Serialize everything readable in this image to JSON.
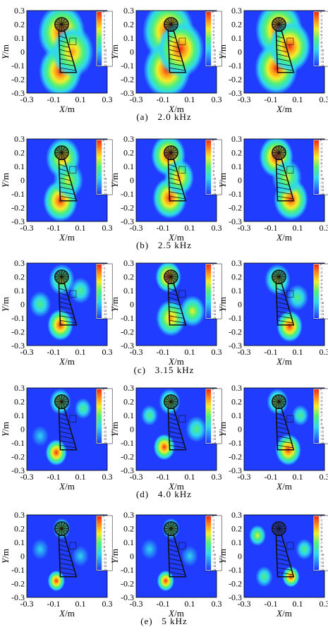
{
  "figure": {
    "x_label_var": "X",
    "x_label_unit": "/m",
    "y_label_var": "Y",
    "y_label_unit": "/m",
    "x_ticks": [
      "-0.3",
      "-0.1",
      "0.1",
      "0.3"
    ],
    "y_ticks": [
      "0.3",
      "0.2",
      "0.1",
      "0",
      "-0.1",
      "-0.2",
      "-0.3"
    ],
    "colorbar_ticks": [
      "0",
      "-1",
      "-2",
      "-3",
      "-4",
      "-5",
      "-6",
      "-7",
      "-8",
      "-9",
      "-10",
      "-11",
      "-12",
      "-13",
      "-14"
    ],
    "colors": {
      "floor": "#1f3cff",
      "cyan": "#2fd7f0",
      "green": "#4ff07a",
      "yellow": "#f2ee2a",
      "orange": "#ff9a1c",
      "red": "#ee2b18",
      "rig": "#111111"
    }
  },
  "captions": [
    {
      "tag": "(a)",
      "freq": "2.0 kHz"
    },
    {
      "tag": "(b)",
      "freq": "2.5 kHz"
    },
    {
      "tag": "(c)",
      "freq": "3.15 kHz"
    },
    {
      "tag": "(d)",
      "freq": "4.0 kHz"
    },
    {
      "tag": "(e)",
      "freq": "5 kHz"
    }
  ],
  "chart_data": {
    "type": "heatmap",
    "layout": "5 rows x 3 columns of acoustic source maps",
    "x_range": [
      -0.3,
      0.3
    ],
    "y_range": [
      -0.3,
      0.3
    ],
    "colorbar_range": [
      -14,
      0
    ],
    "rows": [
      {
        "frequency": "2.0 kHz",
        "panels": [
          {
            "sources": [
              {
                "x": -0.04,
                "y": 0.14,
                "level": 0,
                "spread": 0.11
              },
              {
                "x": -0.05,
                "y": -0.14,
                "level": 0,
                "spread": 0.1
              },
              {
                "x": 0.04,
                "y": 0.0,
                "level": -2,
                "spread": 0.1
              }
            ]
          },
          {
            "sources": [
              {
                "x": -0.06,
                "y": 0.15,
                "level": 0,
                "spread": 0.12
              },
              {
                "x": -0.07,
                "y": -0.13,
                "level": 0,
                "spread": 0.11
              },
              {
                "x": 0.03,
                "y": 0.02,
                "level": -1,
                "spread": 0.11
              }
            ]
          },
          {
            "sources": [
              {
                "x": -0.04,
                "y": 0.16,
                "level": 0,
                "spread": 0.11
              },
              {
                "x": -0.06,
                "y": -0.12,
                "level": 0,
                "spread": 0.1
              },
              {
                "x": 0.04,
                "y": 0.04,
                "level": -1,
                "spread": 0.1
              }
            ]
          }
        ]
      },
      {
        "frequency": "2.5 kHz",
        "panels": [
          {
            "sources": [
              {
                "x": -0.05,
                "y": -0.15,
                "level": 0,
                "spread": 0.08
              },
              {
                "x": -0.03,
                "y": 0.16,
                "level": -3,
                "spread": 0.08
              },
              {
                "x": 0.01,
                "y": 0.0,
                "level": -4,
                "spread": 0.07
              }
            ]
          },
          {
            "sources": [
              {
                "x": -0.06,
                "y": 0.18,
                "level": 0,
                "spread": 0.08
              },
              {
                "x": -0.05,
                "y": -0.13,
                "level": -1,
                "spread": 0.08
              },
              {
                "x": 0.02,
                "y": 0.02,
                "level": -3,
                "spread": 0.07
              }
            ]
          },
          {
            "sources": [
              {
                "x": -0.06,
                "y": 0.17,
                "level": 0,
                "spread": 0.08
              },
              {
                "x": 0.05,
                "y": -0.14,
                "level": -1,
                "spread": 0.08
              },
              {
                "x": 0.02,
                "y": 0.02,
                "level": -4,
                "spread": 0.07
              }
            ]
          }
        ]
      },
      {
        "frequency": "3.15 kHz",
        "panels": [
          {
            "sources": [
              {
                "x": -0.05,
                "y": -0.15,
                "level": 0,
                "spread": 0.06
              },
              {
                "x": -0.04,
                "y": 0.18,
                "level": -4,
                "spread": 0.06
              },
              {
                "x": 0.1,
                "y": 0.1,
                "level": -7,
                "spread": 0.05
              },
              {
                "x": -0.2,
                "y": 0.0,
                "level": -8,
                "spread": 0.05
              }
            ]
          },
          {
            "sources": [
              {
                "x": -0.06,
                "y": 0.2,
                "level": 0,
                "spread": 0.06
              },
              {
                "x": -0.04,
                "y": -0.1,
                "level": -2,
                "spread": 0.07
              },
              {
                "x": 0.12,
                "y": -0.05,
                "level": -6,
                "spread": 0.06
              }
            ]
          },
          {
            "sources": [
              {
                "x": 0.04,
                "y": -0.16,
                "level": 0,
                "spread": 0.06
              },
              {
                "x": -0.05,
                "y": 0.18,
                "level": -4,
                "spread": 0.06
              },
              {
                "x": 0.1,
                "y": 0.05,
                "level": -7,
                "spread": 0.05
              }
            ]
          }
        ]
      },
      {
        "frequency": "4.0 kHz",
        "panels": [
          {
            "sources": [
              {
                "x": -0.08,
                "y": -0.17,
                "level": 0,
                "spread": 0.05
              },
              {
                "x": -0.05,
                "y": 0.2,
                "level": -5,
                "spread": 0.05
              },
              {
                "x": 0.12,
                "y": 0.15,
                "level": -8,
                "spread": 0.04
              },
              {
                "x": -0.2,
                "y": -0.05,
                "level": -9,
                "spread": 0.04
              }
            ]
          },
          {
            "sources": [
              {
                "x": -0.09,
                "y": -0.13,
                "level": 0,
                "spread": 0.05
              },
              {
                "x": -0.05,
                "y": 0.2,
                "level": -4,
                "spread": 0.05
              },
              {
                "x": 0.15,
                "y": 0.0,
                "level": -7,
                "spread": 0.05
              },
              {
                "x": -0.2,
                "y": 0.1,
                "level": -8,
                "spread": 0.04
              }
            ]
          },
          {
            "sources": [
              {
                "x": 0.03,
                "y": -0.15,
                "level": 0,
                "spread": 0.06
              },
              {
                "x": -0.05,
                "y": 0.2,
                "level": -5,
                "spread": 0.05
              },
              {
                "x": 0.12,
                "y": 0.1,
                "level": -8,
                "spread": 0.04
              }
            ]
          }
        ]
      },
      {
        "frequency": "5 kHz",
        "panels": [
          {
            "sources": [
              {
                "x": -0.08,
                "y": -0.18,
                "level": 0,
                "spread": 0.04
              },
              {
                "x": -0.04,
                "y": 0.2,
                "level": -5,
                "spread": 0.04
              },
              {
                "x": 0.1,
                "y": 0.0,
                "level": -9,
                "spread": 0.04
              },
              {
                "x": -0.2,
                "y": 0.05,
                "level": -9,
                "spread": 0.04
              }
            ]
          },
          {
            "sources": [
              {
                "x": -0.08,
                "y": -0.18,
                "level": 0,
                "spread": 0.04
              },
              {
                "x": -0.04,
                "y": 0.2,
                "level": -5,
                "spread": 0.04
              },
              {
                "x": 0.1,
                "y": 0.0,
                "level": -9,
                "spread": 0.04
              },
              {
                "x": -0.2,
                "y": 0.05,
                "level": -9,
                "spread": 0.04
              }
            ]
          },
          {
            "sources": [
              {
                "x": 0.05,
                "y": -0.15,
                "level": 0,
                "spread": 0.04
              },
              {
                "x": -0.2,
                "y": 0.15,
                "level": -6,
                "spread": 0.04
              },
              {
                "x": 0.15,
                "y": 0.05,
                "level": -7,
                "spread": 0.04
              },
              {
                "x": -0.15,
                "y": -0.15,
                "level": -7,
                "spread": 0.04
              }
            ]
          }
        ]
      }
    ]
  }
}
